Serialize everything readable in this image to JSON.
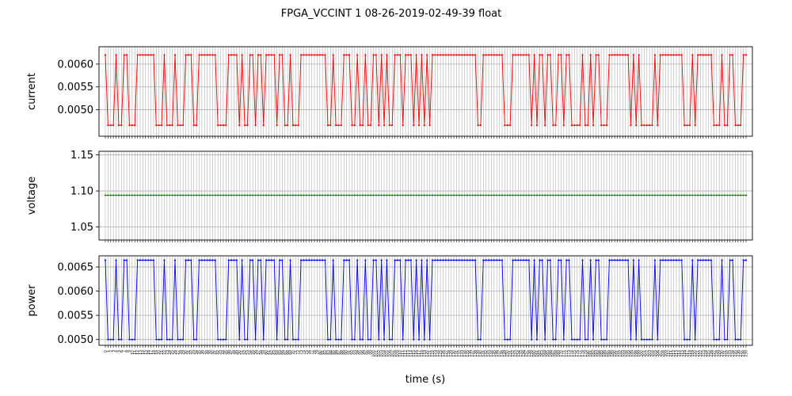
{
  "figure": {
    "title": "FPGA_VCCINT   1   08-26-2019-02-49-39   float",
    "xlabel": "time (s)"
  },
  "chart_data": [
    {
      "type": "line",
      "ylabel": "current",
      "color": "#ff0000",
      "ylim": [
        0.00442,
        0.00638
      ],
      "yticks": [
        0.005,
        0.0055,
        0.006
      ],
      "ytick_labels": [
        "0.0050",
        "0.0055",
        "0.0060"
      ],
      "grid": true,
      "high": 0.0062,
      "low": 0.00466,
      "pattern": "1000100110001111111000100010001110011111110000111101001101101111011001000111111111100100011100100100110101001110111010101011111111111111111001111111100011111110101101100110110000100101100011111111010100000101111111110001011111",
      "x_range": [
        0,
        239
      ]
    },
    {
      "type": "line",
      "ylabel": "voltage",
      "color": "#008000",
      "ylim": [
        1.032,
        1.155
      ],
      "yticks": [
        1.05,
        1.1,
        1.15
      ],
      "ytick_labels": [
        "1.05",
        "1.10",
        "1.15"
      ],
      "grid": true,
      "constant": 1.094,
      "x_range": [
        0,
        239
      ]
    },
    {
      "type": "line",
      "ylabel": "power",
      "color": "#0000ff",
      "ylim": [
        0.00488,
        0.00673
      ],
      "yticks": [
        0.005,
        0.0055,
        0.006,
        0.0065
      ],
      "ytick_labels": [
        "0.0050",
        "0.0055",
        "0.0060",
        "0.0065"
      ],
      "grid": true,
      "high": 0.00664,
      "low": 0.005,
      "pattern": "1000100110001111111000100010001110011111110000111101001101101111011001000111111111100100011100100100110101001110111010101011111111111111111001111111100011111110101101100110110000100101100011111111010100000101111111110001011111",
      "x_range": [
        0,
        239
      ]
    }
  ]
}
